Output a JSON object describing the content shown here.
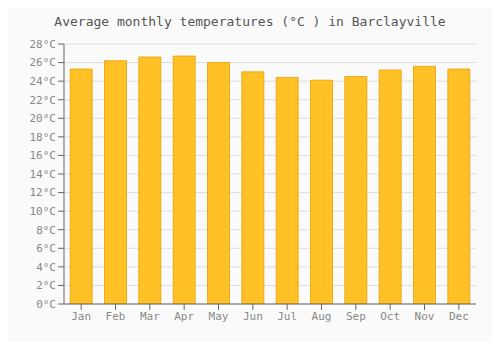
{
  "chart_data": {
    "type": "bar",
    "title": "Average monthly temperatures (°C ) in Barclayville",
    "categories": [
      "Jan",
      "Feb",
      "Mar",
      "Apr",
      "May",
      "Jun",
      "Jul",
      "Aug",
      "Sep",
      "Oct",
      "Nov",
      "Dec"
    ],
    "values": [
      25.3,
      26.2,
      26.6,
      26.7,
      26.0,
      25.0,
      24.4,
      24.1,
      24.5,
      25.2,
      25.6,
      25.3
    ],
    "color": "#FFC125",
    "ylim": [
      0,
      28
    ],
    "yticks": [
      {
        "value": 0,
        "label": "0°C"
      },
      {
        "value": 2,
        "label": "2°C"
      },
      {
        "value": 4,
        "label": "4°C"
      },
      {
        "value": 6,
        "label": "6°C"
      },
      {
        "value": 8,
        "label": "8°C"
      },
      {
        "value": 10,
        "label": "10°C"
      },
      {
        "value": 12,
        "label": "12°C"
      },
      {
        "value": 14,
        "label": "14°C"
      },
      {
        "value": 16,
        "label": "16°C"
      },
      {
        "value": 18,
        "label": "18°C"
      },
      {
        "value": 20,
        "label": "20°C"
      },
      {
        "value": 22,
        "label": "22°C"
      },
      {
        "value": 24,
        "label": "24°C"
      },
      {
        "value": 26,
        "label": "26°C"
      },
      {
        "value": 28,
        "label": "28°C"
      }
    ],
    "grid": true
  }
}
